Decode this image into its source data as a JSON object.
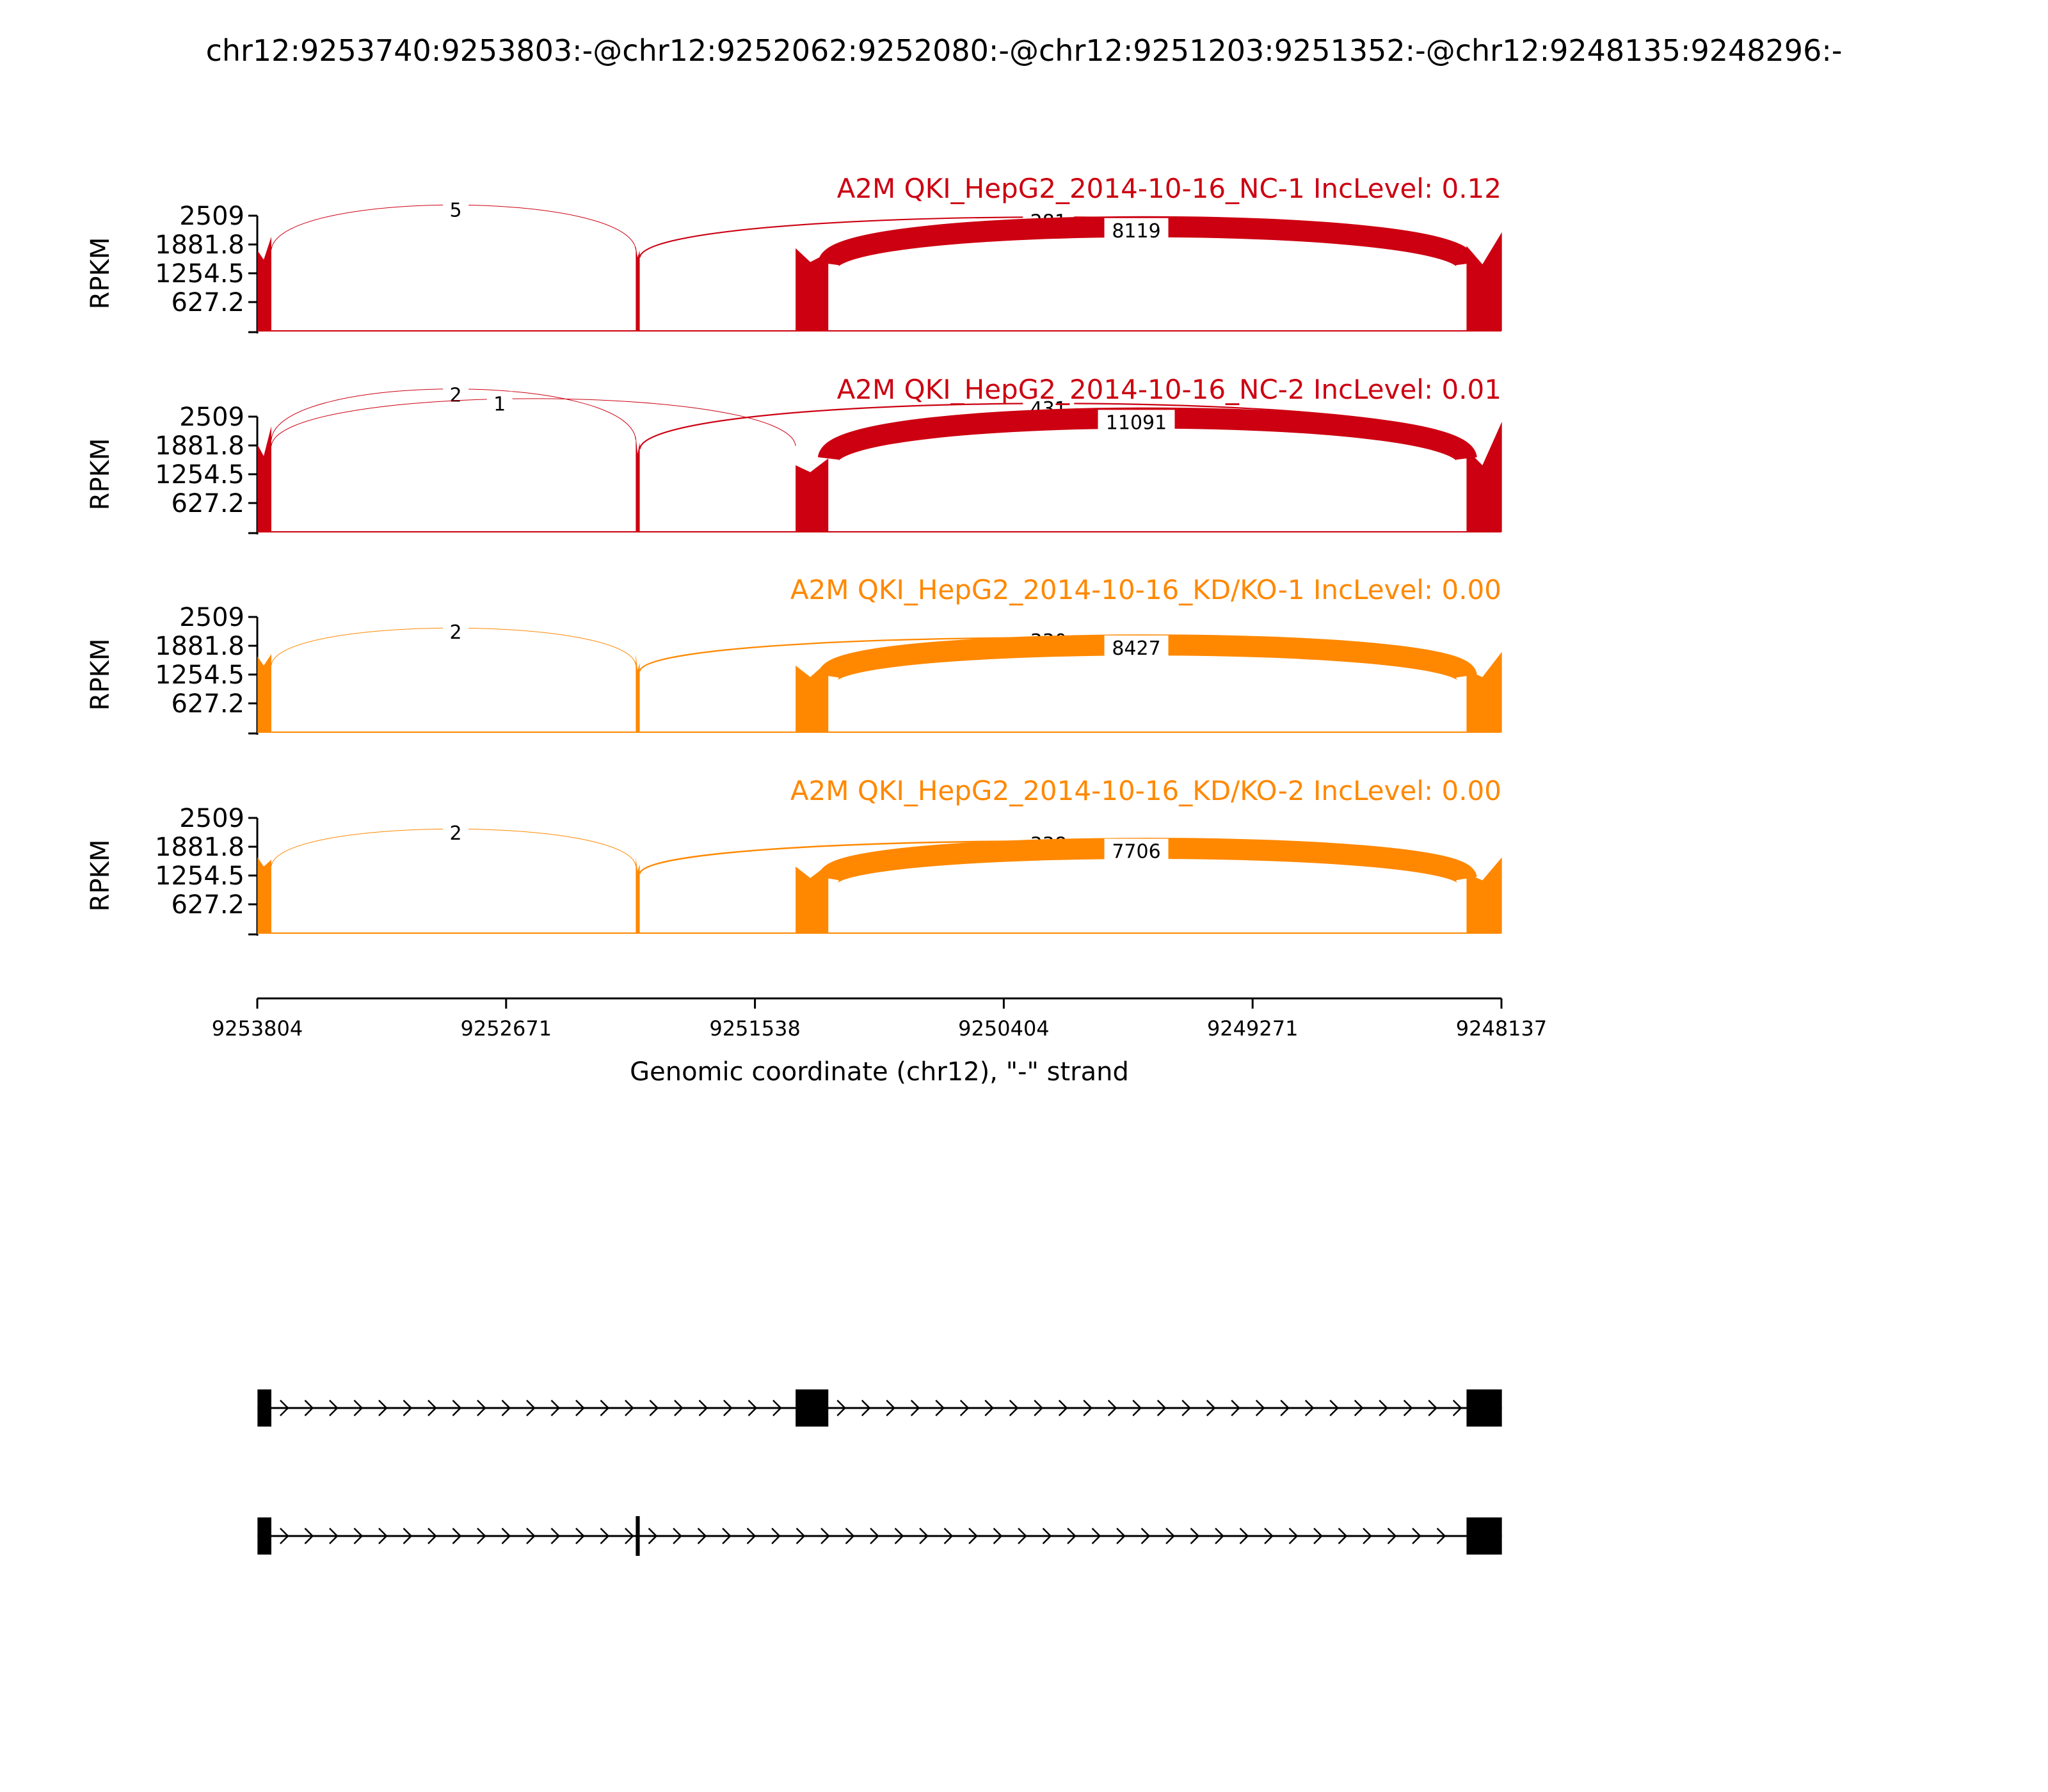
{
  "chart_data": {
    "type": "sashimi",
    "title": "chr12:9253740:9253803:-@chr12:9252062:9252080:-@chr12:9251203:9251352:-@chr12:9248135:9248296:-",
    "xlabel": "Genomic coordinate (chr12), \"-\" strand",
    "ylabel": "RPKM",
    "x_ticks": [
      "9253804",
      "9252671",
      "9251538",
      "9250404",
      "9249271",
      "9248137"
    ],
    "xlim": [
      9253804,
      9248137
    ],
    "y_ticks": [
      "2509",
      "1881.8",
      "1254.5",
      "627.2"
    ],
    "ylim": [
      0,
      2509
    ],
    "exons": [
      {
        "start": 9253803,
        "end": 9253740
      },
      {
        "start": 9252080,
        "end": 9252062
      },
      {
        "start": 9251352,
        "end": 9251203
      },
      {
        "start": 9248296,
        "end": 9248135
      }
    ],
    "panels": [
      {
        "title": "A2M QKI_HepG2_2014-10-16_NC-1 IncLevel: 0.12",
        "color": "#cc0011",
        "exon_heights": [
          [
            1750,
            1550,
            2050
          ],
          [
            1850,
            1600,
            1750
          ],
          [
            1800,
            1500,
            1700
          ],
          [
            1850,
            1450,
            2150
          ]
        ],
        "junctions": [
          {
            "from": 9253740,
            "to": 9252080,
            "count": "5",
            "label_x": 9252900,
            "label_y": 2600
          },
          {
            "from": 9252062,
            "to": 9248296,
            "count": "281",
            "label_x": 9250200,
            "label_y": 2350
          },
          {
            "from": 9251203,
            "to": 9248296,
            "count": "8119",
            "label_x": 9249800,
            "label_y": 2150
          }
        ]
      },
      {
        "title": "A2M QKI_HepG2_2014-10-16_NC-2 IncLevel: 0.01",
        "color": "#cc0011",
        "exon_heights": [
          [
            1900,
            1650,
            2300
          ],
          [
            2100,
            1700,
            1950
          ],
          [
            1450,
            1300,
            1600
          ],
          [
            1800,
            1450,
            2400
          ]
        ],
        "junctions": [
          {
            "from": 9253740,
            "to": 9252080,
            "count": "2",
            "label_x": 9252900,
            "label_y": 2950
          },
          {
            "from": 9253740,
            "to": 9251352,
            "count": "1",
            "label_x": 9252700,
            "label_y": 2750
          },
          {
            "from": 9252062,
            "to": 9248296,
            "count": "431",
            "label_x": 9250200,
            "label_y": 2650
          },
          {
            "from": 9251203,
            "to": 9248296,
            "count": "11091",
            "label_x": 9249800,
            "label_y": 2350
          }
        ]
      },
      {
        "title": "A2M QKI_HepG2_2014-10-16_KD/KO-1 IncLevel: 0.00",
        "color": "#ff8800",
        "exon_heights": [
          [
            1650,
            1450,
            1700
          ],
          [
            1700,
            1350,
            1500
          ],
          [
            1450,
            1200,
            1550
          ],
          [
            1350,
            1200,
            1750
          ]
        ],
        "junctions": [
          {
            "from": 9253740,
            "to": 9252080,
            "count": "2",
            "label_x": 9252900,
            "label_y": 2150
          },
          {
            "from": 9252062,
            "to": 9248296,
            "count": "330",
            "label_x": 9250200,
            "label_y": 1950
          },
          {
            "from": 9251203,
            "to": 9248296,
            "count": "8427",
            "label_x": 9249800,
            "label_y": 1800
          }
        ]
      },
      {
        "title": "A2M QKI_HepG2_2014-10-16_KD/KO-2 IncLevel: 0.00",
        "color": "#ff8800",
        "exon_heights": [
          [
            1650,
            1450,
            1600
          ],
          [
            1650,
            1350,
            1500
          ],
          [
            1450,
            1200,
            1500
          ],
          [
            1300,
            1150,
            1650
          ]
        ],
        "junctions": [
          {
            "from": 9253740,
            "to": 9252080,
            "count": "2",
            "label_x": 9252900,
            "label_y": 2150
          },
          {
            "from": 9252062,
            "to": 9248296,
            "count": "338",
            "label_x": 9250200,
            "label_y": 1900
          },
          {
            "from": 9251203,
            "to": 9248296,
            "count": "7706",
            "label_x": 9249800,
            "label_y": 1750
          }
        ]
      }
    ],
    "isoforms": [
      {
        "exons": [
          [
            9253803,
            9253740
          ],
          [
            9251352,
            9251203
          ],
          [
            9248296,
            9248135
          ]
        ]
      },
      {
        "exons": [
          [
            9253803,
            9253740
          ],
          [
            9252080,
            9252062
          ],
          [
            9248296,
            9248135
          ]
        ]
      }
    ]
  }
}
